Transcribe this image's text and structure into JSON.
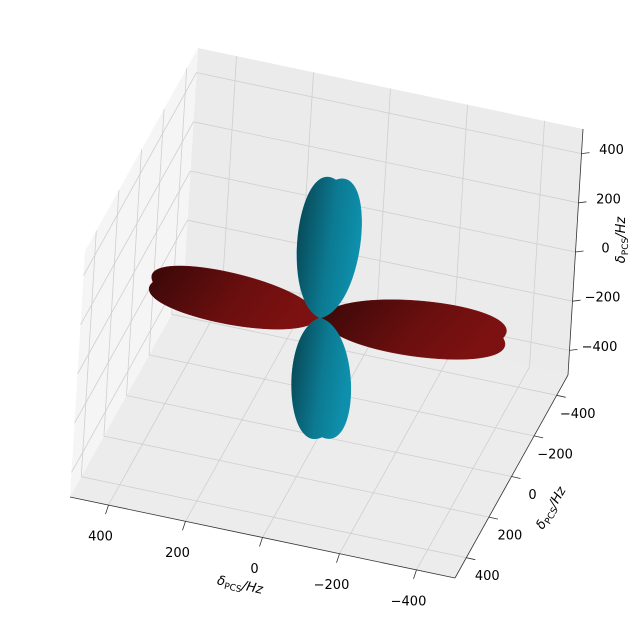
{
  "chart_data": {
    "type": "surface3d",
    "xlabel": {
      "symbol": "δ",
      "subscript": "PCS",
      "unit": "/Hz"
    },
    "ylabel": {
      "symbol": "δ",
      "subscript": "PCS",
      "unit": "/Hz"
    },
    "zlabel": {
      "symbol": "δ",
      "subscript": "PCS",
      "unit": "/Hz"
    },
    "xlim": [
      -500,
      500
    ],
    "ylim": [
      -500,
      500
    ],
    "zlim": [
      -500,
      500
    ],
    "xticks": [
      {
        "value": -400,
        "label": "−400"
      },
      {
        "value": -200,
        "label": "−200"
      },
      0,
      200,
      400
    ],
    "yticks": [
      {
        "value": -400,
        "label": "−400"
      },
      {
        "value": -200,
        "label": "−200"
      },
      0,
      200,
      400
    ],
    "zticks": [
      {
        "value": -400,
        "label": "−400"
      },
      {
        "value": -200,
        "label": "−200"
      },
      0,
      200,
      400
    ],
    "grid": true,
    "surface_colors": [
      "#7d1111",
      "#0e8fab"
    ]
  }
}
